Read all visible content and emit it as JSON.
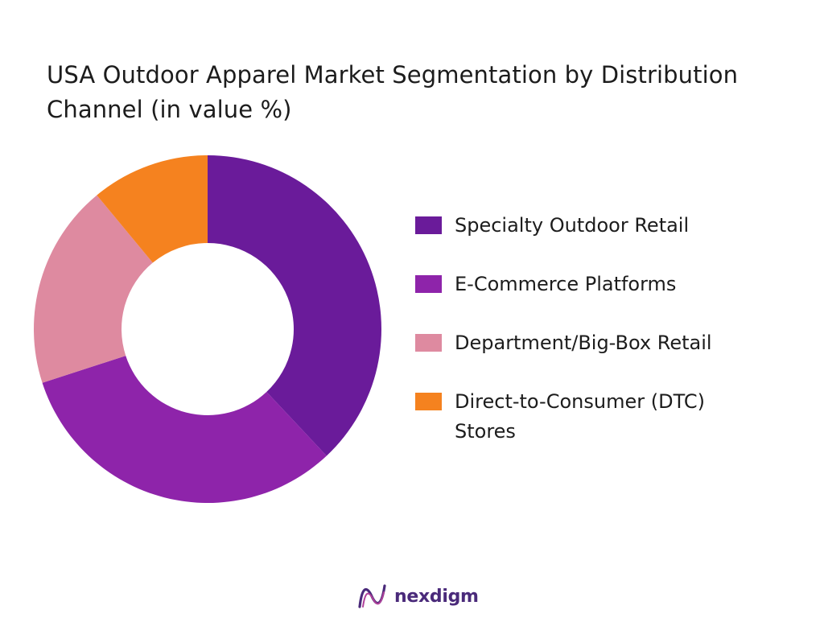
{
  "chart_data": {
    "type": "pie",
    "subtype": "donut",
    "title": "USA Outdoor Apparel Market Segmentation by Distribution Channel (in value %)",
    "categories": [
      "Specialty Outdoor Retail",
      "E-Commerce Platforms",
      "Department/Big-Box Retail",
      "Direct-to-Consumer (DTC) Stores"
    ],
    "values": [
      38,
      32,
      19,
      11
    ],
    "colors": [
      "#6a1b9a",
      "#8e24aa",
      "#de8aa0",
      "#f5821f"
    ],
    "legend": "right"
  },
  "brand": {
    "name": "nexdigm",
    "logo_colors": [
      "#4a2a7a",
      "#b0409a"
    ]
  }
}
